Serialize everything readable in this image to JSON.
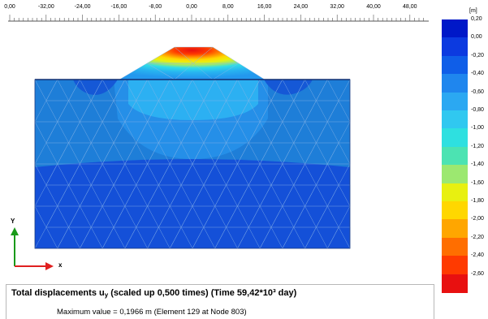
{
  "ruler": {
    "labels": [
      "0,00",
      "-32,00",
      "-24,00",
      "-16,00",
      "-8,00",
      "0,00",
      "8,00",
      "16,00",
      "24,00",
      "32,00",
      "40,00",
      "48,00"
    ]
  },
  "legend": {
    "unit": "[m]",
    "labels": [
      "0,20",
      "0,00",
      "-0,20",
      "-0,40",
      "-0,60",
      "-0,80",
      "-1,00",
      "-1,20",
      "-1,40",
      "-1,60",
      "-1,80",
      "-2,00",
      "-2,20",
      "-2,40",
      "-2,60"
    ],
    "colors": [
      "#0018c8",
      "#0c3ae0",
      "#0f5ee8",
      "#1f86ee",
      "#2ba8f2",
      "#30c8f0",
      "#2ee0e0",
      "#4ce3b2",
      "#9ce870",
      "#e8f010",
      "#ffd700",
      "#ffa600",
      "#ff6e00",
      "#ff3a00",
      "#e81010"
    ]
  },
  "axes": {
    "y_label": "Y",
    "x_label": "x"
  },
  "info": {
    "title_prefix": "Total displacements u",
    "title_sub": "y",
    "title_suffix": " (scaled up 0,500 times) (Time 59,42*10³ day)",
    "max_value": "Maximum value = 0,1966 m (Element 129 at Node 803)"
  },
  "colors": {
    "ground_fill": "#1e7ed8",
    "deep_fill": "#1450d8",
    "mesh_line": "#8cb6e6",
    "axis_y": "#1a9a1a",
    "axis_x": "#e02020"
  }
}
